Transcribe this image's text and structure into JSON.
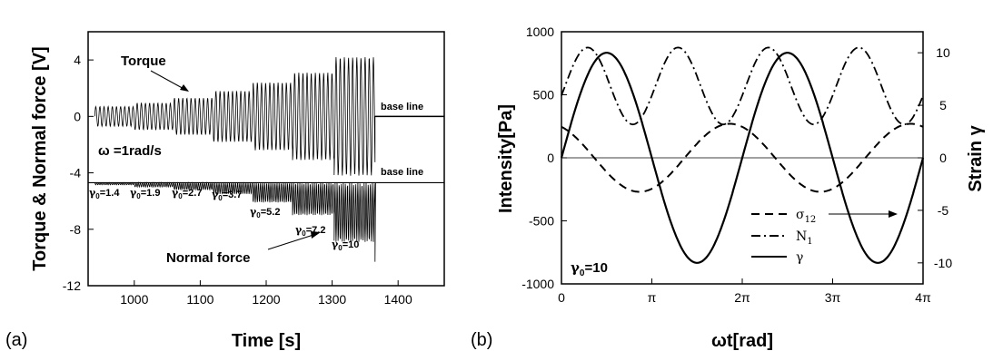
{
  "chart_data": [
    {
      "panel_label": "(a)",
      "type": "line",
      "xlabel": "Time [s]",
      "ylabel": "Torque & Normal force [V]",
      "xlim": [
        930,
        1470
      ],
      "ylim": [
        -12,
        6
      ],
      "xticks": [
        1000,
        1100,
        1200,
        1300,
        1400
      ],
      "yticks": [
        4,
        0,
        -4,
        -8,
        -12
      ],
      "grid": false,
      "series": [
        {
          "name": "Torque",
          "baseline": 0,
          "oscillation": "sinusoidal, omega = 1 rad/s",
          "segments": [
            {
              "gamma0": "1.4",
              "x_start": 940,
              "x_end": 1000,
              "amplitude": 0.7
            },
            {
              "gamma0": "1.9",
              "x_start": 1000,
              "x_end": 1060,
              "amplitude": 0.95
            },
            {
              "gamma0": "2.7",
              "x_start": 1060,
              "x_end": 1120,
              "amplitude": 1.3
            },
            {
              "gamma0": "3.7",
              "x_start": 1120,
              "x_end": 1180,
              "amplitude": 1.8
            },
            {
              "gamma0": "5.2",
              "x_start": 1180,
              "x_end": 1240,
              "amplitude": 2.4
            },
            {
              "gamma0": "7.2",
              "x_start": 1240,
              "x_end": 1303,
              "amplitude": 3.1
            },
            {
              "gamma0": "10",
              "x_start": 1303,
              "x_end": 1365,
              "amplitude": 4.2
            }
          ],
          "after": {
            "x_start": 1365,
            "x_end": 1470,
            "value": 0
          }
        },
        {
          "name": "Normal force",
          "baseline": -4.7,
          "oscillation": "one-sided, below baseline",
          "segments": [
            {
              "gamma0": "1.4",
              "x_start": 940,
              "x_end": 1000,
              "depth": 0.15
            },
            {
              "gamma0": "1.9",
              "x_start": 1000,
              "x_end": 1060,
              "depth": 0.3
            },
            {
              "gamma0": "2.7",
              "x_start": 1060,
              "x_end": 1120,
              "depth": 0.5
            },
            {
              "gamma0": "3.7",
              "x_start": 1120,
              "x_end": 1180,
              "depth": 0.8
            },
            {
              "gamma0": "5.2",
              "x_start": 1180,
              "x_end": 1240,
              "depth": 1.4
            },
            {
              "gamma0": "7.2",
              "x_start": 1240,
              "x_end": 1303,
              "depth": 2.3
            },
            {
              "gamma0": "10",
              "x_start": 1303,
              "x_end": 1365,
              "depth": 4.2
            }
          ],
          "spike": {
            "x": 1365,
            "min": -10.3
          },
          "after": {
            "x_start": 1365,
            "x_end": 1470,
            "value": -4.7
          }
        }
      ],
      "annotations": {
        "torque": "Torque",
        "normal_force": "Normal force",
        "base_line_top": "base line",
        "base_line_bottom": "base line",
        "omega": "ω =1rad/s",
        "gamma_prefix": "γ",
        "gamma_sub": "0",
        "gamma_values": [
          "1.4",
          "1.9",
          "2.7",
          "3.7",
          "5.2",
          "7.2",
          "10"
        ]
      }
    },
    {
      "panel_label": "(b)",
      "type": "line",
      "xlabel": "ωt[rad]",
      "ylabel": "Intensity[Pa]",
      "y2label": "Strain γ",
      "xlim": [
        0,
        12.566
      ],
      "ylim": [
        -1000,
        1000
      ],
      "y2lim": [
        -12,
        12
      ],
      "xticks": [
        "0",
        "π",
        "2π",
        "3π",
        "4π"
      ],
      "yticks": [
        1000,
        500,
        0,
        -500,
        -1000
      ],
      "y2ticks": [
        10,
        5,
        0,
        -5,
        -10
      ],
      "grid": false,
      "legend_position": "bottom-center",
      "series": [
        {
          "name": "σ12",
          "label_main": "σ",
          "label_sub": "12",
          "style": "dashed",
          "amplitude": 270,
          "phase_shift": 0.43,
          "axis": "left"
        },
        {
          "name": "N1",
          "label_main": "N",
          "label_sub": "1",
          "style": "dash-dot",
          "mean": 570,
          "amplitude": 305,
          "axis": "left"
        },
        {
          "name": "γ",
          "label_main": "γ",
          "label_sub": "",
          "style": "solid",
          "amplitude": 10,
          "axis": "right"
        }
      ],
      "annotations": {
        "gamma_prefix": "γ",
        "gamma_sub": "0",
        "gamma_value": "=10"
      }
    }
  ]
}
